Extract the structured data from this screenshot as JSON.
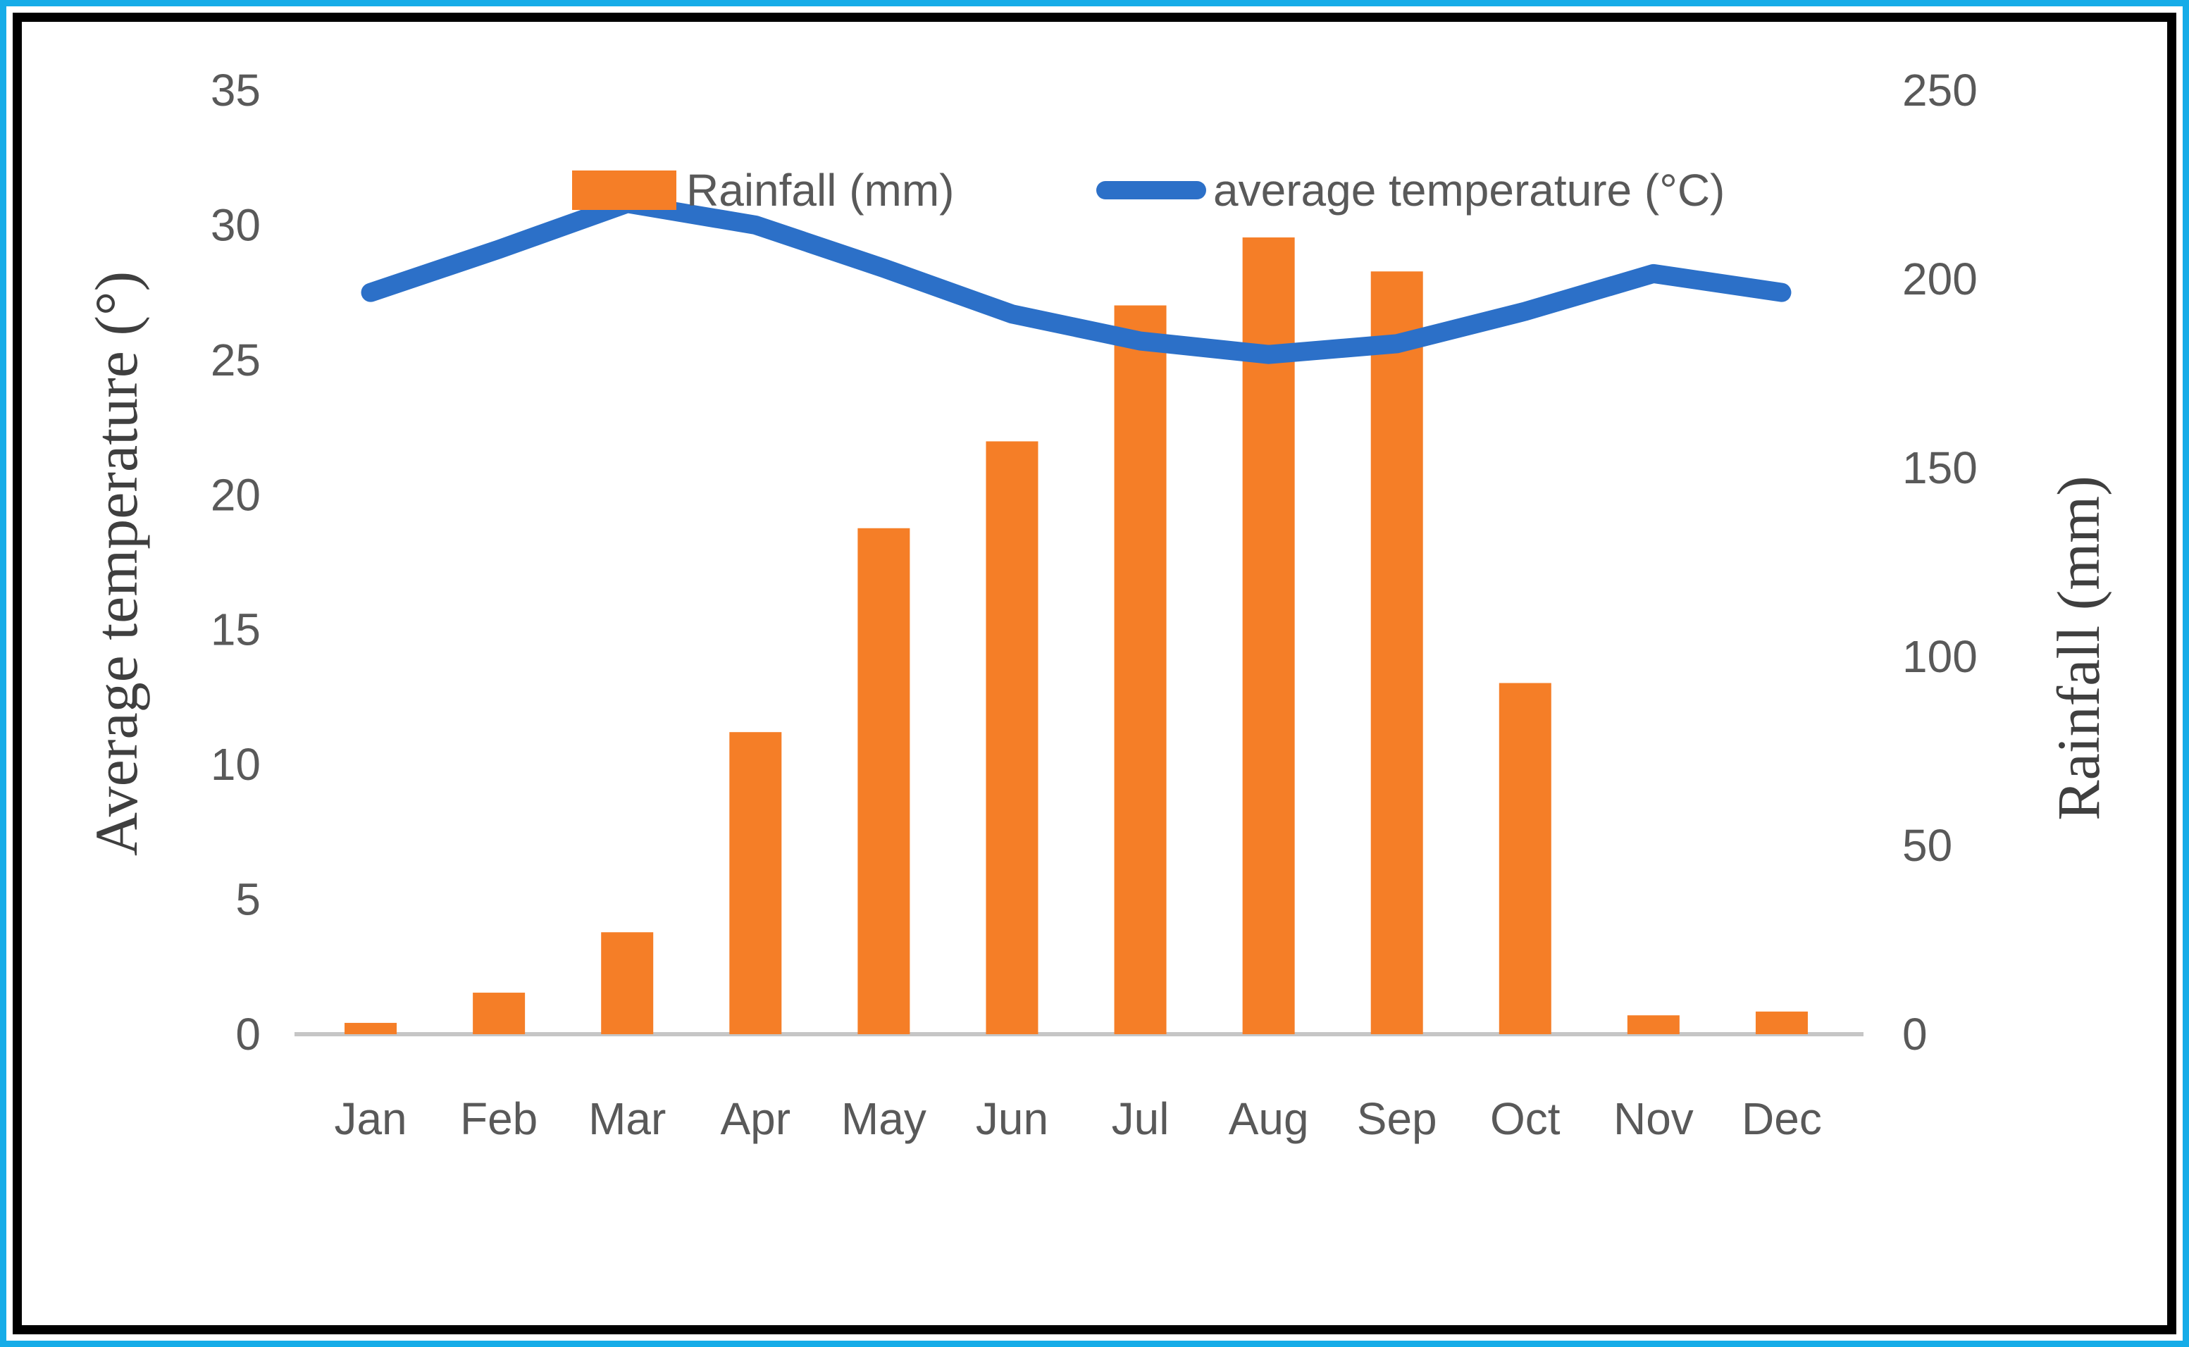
{
  "frame": {
    "outer_border_color": "#16ACE8",
    "inner_border_color": "#000000",
    "background_color": "#FFFFFF"
  },
  "legend": {
    "rainfall_label": "Rainfall (mm)",
    "temperature_label": "average temperature (°C)"
  },
  "axes": {
    "left_title": "Average temperature (°)",
    "right_title": "Rainfall (mm)",
    "left_ticks": [
      0,
      5,
      10,
      15,
      20,
      25,
      30,
      35
    ],
    "right_ticks": [
      0,
      50,
      100,
      150,
      200,
      250
    ],
    "tick_color": "#595959",
    "axis_line_color": "#C6C6C6"
  },
  "chart_data": {
    "type": "bar+line combo",
    "categories": [
      "Jan",
      "Feb",
      "Mar",
      "Apr",
      "May",
      "Jun",
      "Jul",
      "Aug",
      "Sep",
      "Oct",
      "Nov",
      "Dec"
    ],
    "series": [
      {
        "name": "Rainfall (mm)",
        "type": "bar",
        "axis": "right",
        "color": "#F57E27",
        "values": [
          3,
          11,
          27,
          80,
          134,
          157,
          193,
          211,
          202,
          93,
          5,
          6
        ]
      },
      {
        "name": "average temperature (°C)",
        "type": "line",
        "axis": "left",
        "color": "#2C70C8",
        "values": [
          27.5,
          29.1,
          30.8,
          30.0,
          28.4,
          26.7,
          25.7,
          25.2,
          25.6,
          26.8,
          28.2,
          27.5
        ]
      }
    ],
    "left_axis": {
      "label": "Average temperature (°)",
      "min": 0,
      "max": 35,
      "step": 5
    },
    "right_axis": {
      "label": "Rainfall (mm)",
      "min": 0,
      "max": 250,
      "step": 50
    },
    "grid": "off",
    "legend_position": "top-inside"
  }
}
